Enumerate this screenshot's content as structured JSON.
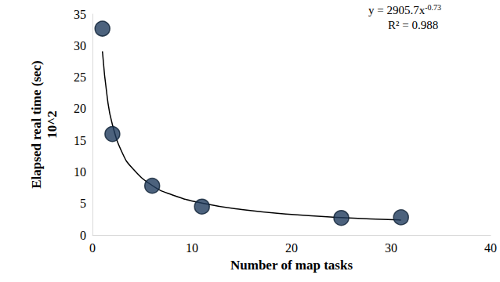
{
  "chart_data": {
    "type": "scatter",
    "x_label": "Number of map tasks",
    "y_label": "Elapsed real time (sec)\n10^2",
    "xlim": [
      0,
      40
    ],
    "xticks": [
      0,
      10,
      20,
      30,
      40
    ],
    "ylim": [
      0,
      35
    ],
    "yticks": [
      0,
      5,
      10,
      15,
      20,
      25,
      30,
      35
    ],
    "grid": false,
    "series": [
      {
        "type": "scatter",
        "color": "#1f3b5c",
        "marker": "circle",
        "x": [
          1,
          2,
          6,
          11,
          25,
          31
        ],
        "values": [
          32.7,
          16.0,
          7.8,
          4.5,
          2.7,
          2.8
        ]
      },
      {
        "type": "line",
        "color": "#000000",
        "line_style": "solid",
        "x": [
          1,
          1.5,
          2,
          3,
          4,
          6,
          8,
          11,
          15,
          20,
          25,
          31
        ],
        "values": [
          29.1,
          21.6,
          17.5,
          13.0,
          10.6,
          7.85,
          6.37,
          5.05,
          4.02,
          3.26,
          2.77,
          2.37
        ]
      }
    ],
    "annotations": [
      {
        "text": "y = 2905.7x",
        "superscript": "-0.73"
      },
      {
        "text": "R² = 0.988"
      }
    ]
  }
}
